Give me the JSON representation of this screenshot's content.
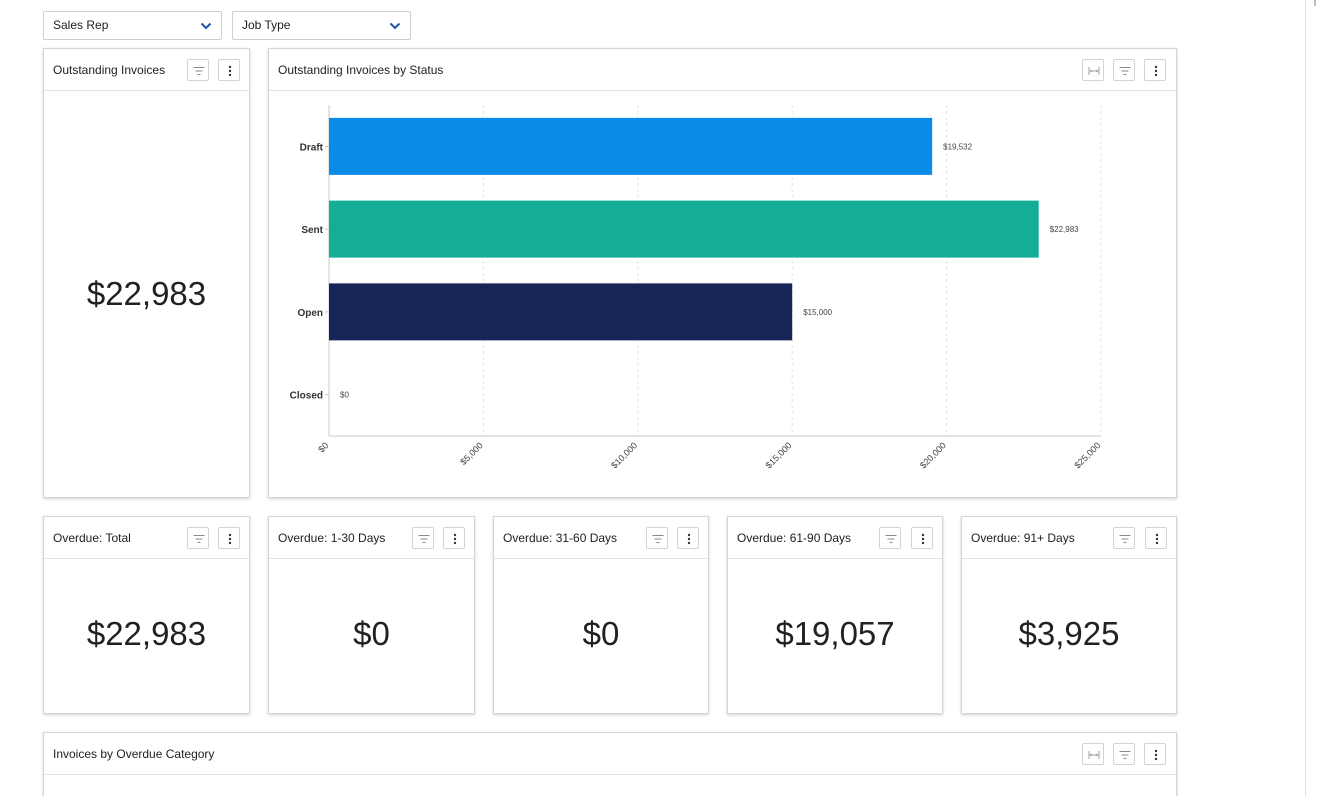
{
  "filters": {
    "sales_rep": "Sales Rep",
    "job_type": "Job Type"
  },
  "cards": {
    "outstanding": {
      "title": "Outstanding Invoices",
      "value": "$22,983"
    },
    "by_status": {
      "title": "Outstanding Invoices by Status"
    },
    "overdue_total": {
      "title": "Overdue: Total",
      "value": "$22,983"
    },
    "overdue_1_30": {
      "title": "Overdue: 1-30 Days",
      "value": "$0"
    },
    "overdue_31_60": {
      "title": "Overdue: 31-60 Days",
      "value": "$0"
    },
    "overdue_61_90": {
      "title": "Overdue: 61-90 Days",
      "value": "$19,057"
    },
    "overdue_91": {
      "title": "Overdue: 91+ Days",
      "value": "$3,925"
    },
    "by_overdue_category": {
      "title": "Invoices by Overdue Category"
    }
  },
  "icons": {
    "filter": "filter-icon",
    "more": "more-vertical-icon",
    "expand": "expand-width-icon",
    "dropdown": "chevron-down-icon"
  },
  "chart_data": {
    "type": "bar",
    "orientation": "horizontal",
    "categories": [
      "Draft",
      "Sent",
      "Open",
      "Closed"
    ],
    "values": [
      19532,
      22983,
      15000,
      0
    ],
    "value_labels": [
      "$19,532",
      "$22,983",
      "$15,000",
      "$0"
    ],
    "colors": [
      "#0a8be8",
      "#14ae96",
      "#162556",
      "#9e9e9e"
    ],
    "xlim": [
      0,
      25000
    ],
    "x_ticks": [
      "$0",
      "$5,000",
      "$10,000",
      "$15,000",
      "$20,000",
      "$25,000"
    ],
    "x_tick_values": [
      0,
      5000,
      10000,
      15000,
      20000,
      25000
    ],
    "grid": true,
    "xlabel": "",
    "ylabel": ""
  }
}
